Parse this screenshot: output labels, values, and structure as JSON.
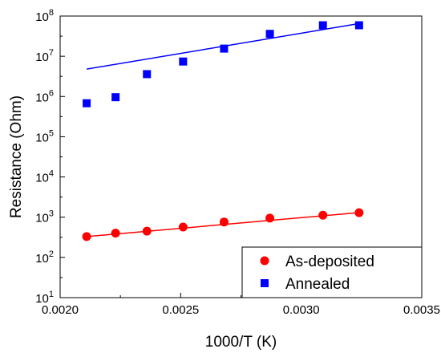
{
  "chart_data": {
    "type": "scatter",
    "title": "",
    "xlabel": "1000/T (K)",
    "ylabel": "Resistance (Ohm)",
    "xlim": [
      0.002,
      0.0035
    ],
    "ylim": [
      10,
      100000000
    ],
    "yscale": "log",
    "x_ticks": [
      {
        "value": 0.002,
        "label": "0.0020"
      },
      {
        "value": 0.0025,
        "label": "0.0025"
      },
      {
        "value": 0.003,
        "label": "0.0030"
      },
      {
        "value": 0.0035,
        "label": "0.0035"
      }
    ],
    "y_ticks": [
      {
        "exp": 1,
        "base": "10",
        "sup": "1"
      },
      {
        "exp": 2,
        "base": "10",
        "sup": "2"
      },
      {
        "exp": 3,
        "base": "10",
        "sup": "3"
      },
      {
        "exp": 4,
        "base": "10",
        "sup": "4"
      },
      {
        "exp": 5,
        "base": "10",
        "sup": "5"
      },
      {
        "exp": 6,
        "base": "10",
        "sup": "6"
      },
      {
        "exp": 7,
        "base": "10",
        "sup": "7"
      },
      {
        "exp": 8,
        "base": "10",
        "sup": "8"
      }
    ],
    "grid": false,
    "legend_position": "bottom-right",
    "series": [
      {
        "name": "As-deposited",
        "marker": "circle",
        "color": "#ff0000",
        "x": [
          0.00211,
          0.00223,
          0.00236,
          0.00251,
          0.00268,
          0.00287,
          0.00309,
          0.00324
        ],
        "y": [
          330,
          400,
          450,
          570,
          760,
          950,
          1120,
          1290
        ],
        "fit": {
          "x": [
            0.00211,
            0.00324
          ],
          "y": [
            330,
            1300
          ]
        }
      },
      {
        "name": "Annealed",
        "marker": "square",
        "color": "#0000ff",
        "x": [
          0.00211,
          0.00223,
          0.00236,
          0.00251,
          0.00268,
          0.00287,
          0.00309,
          0.00324
        ],
        "y": [
          680000,
          960000,
          3600000,
          7400000,
          15500000,
          36000000,
          59000000,
          59000000
        ],
        "fit": {
          "x": [
            0.00211,
            0.00324
          ],
          "y": [
            4800000,
            65000000
          ]
        }
      }
    ]
  }
}
